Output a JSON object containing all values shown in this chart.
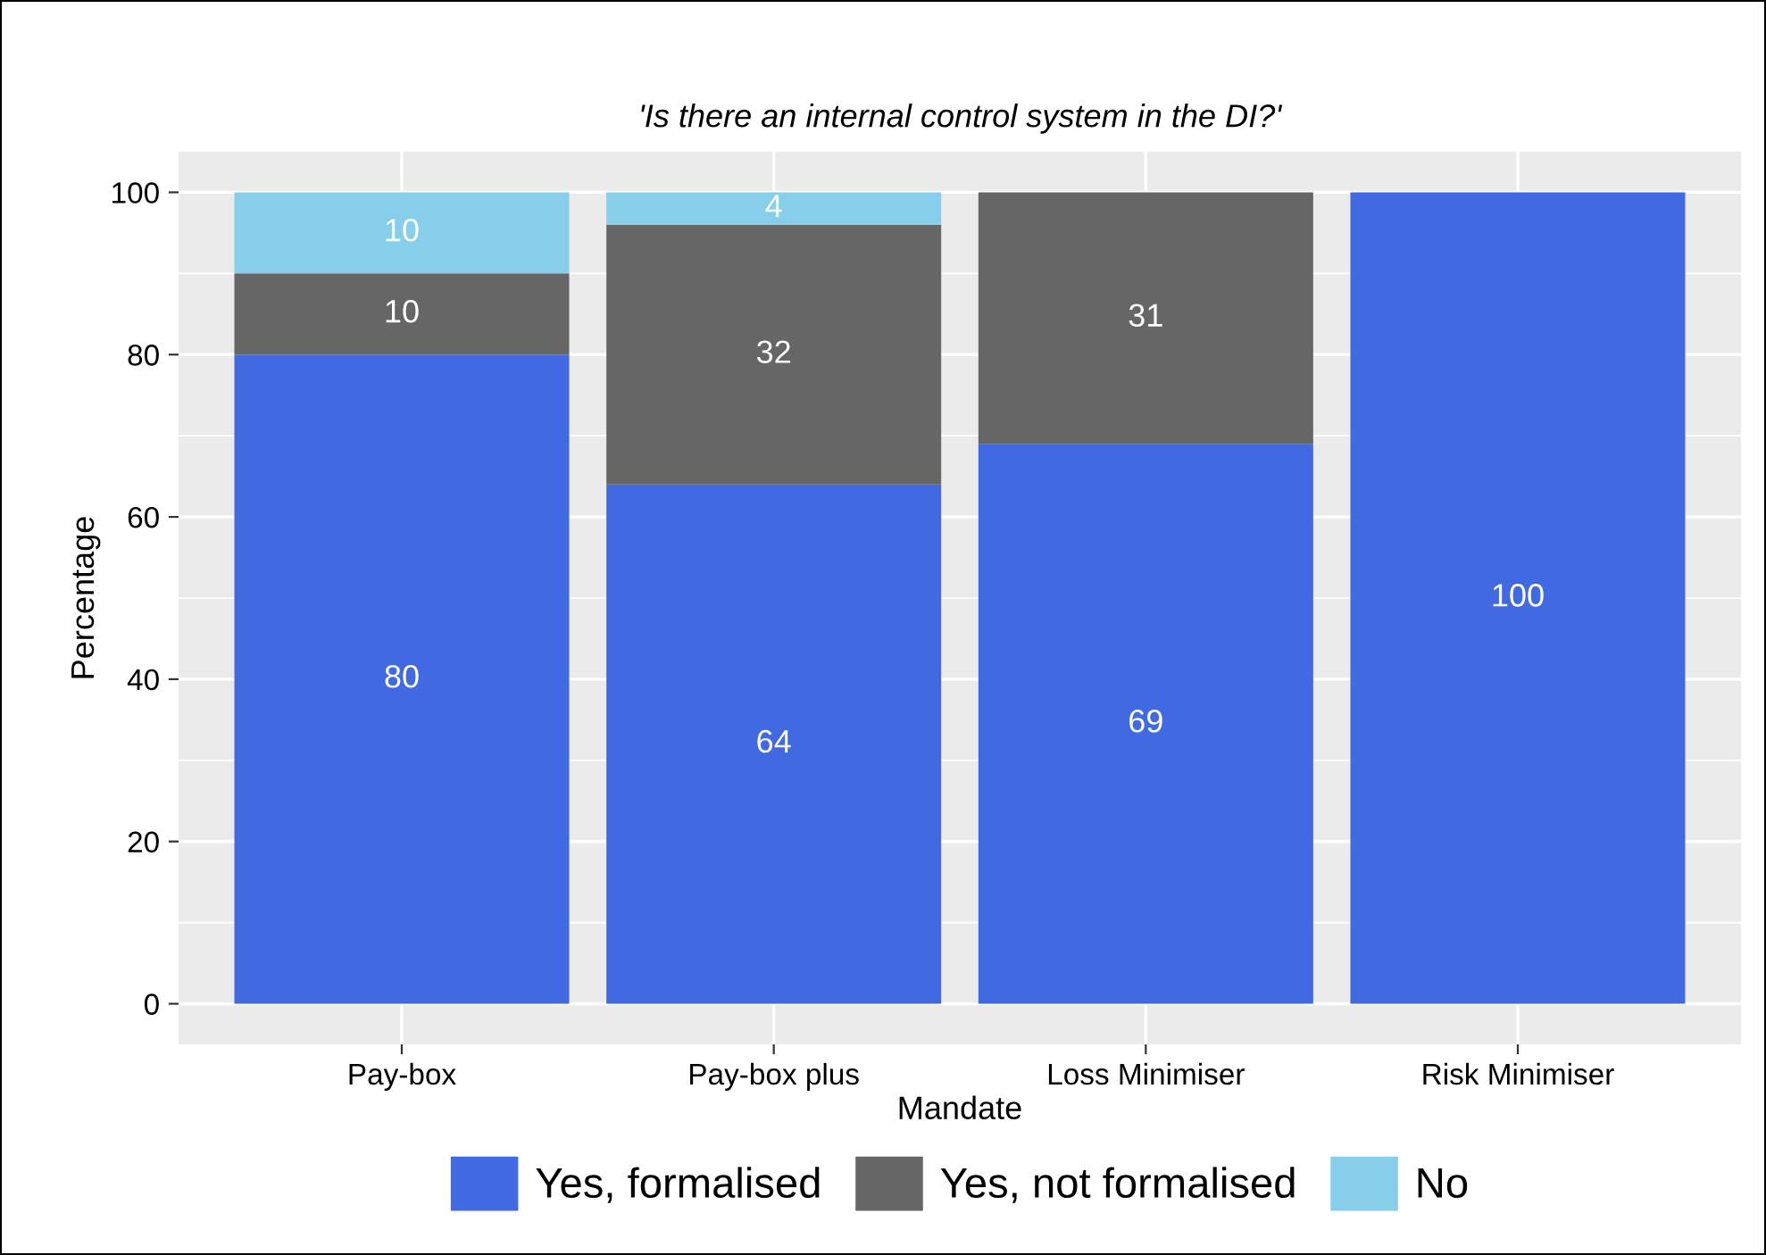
{
  "chart_data": {
    "type": "bar",
    "title": "'Is there an internal control system in the DI?'",
    "xlabel": "Mandate",
    "ylabel": "Percentage",
    "categories": [
      "Pay-box",
      "Pay-box plus",
      "Loss Minimiser",
      "Risk Minimiser"
    ],
    "stacked": true,
    "series": [
      {
        "name": "Yes, formalised",
        "color": "#4169e1",
        "values": [
          80,
          64,
          69,
          100
        ],
        "value_labels": [
          "80",
          "64",
          "69",
          "100"
        ]
      },
      {
        "name": "Yes, not formalised",
        "color": "#666666",
        "values": [
          10,
          32,
          31,
          0
        ],
        "value_labels": [
          "10",
          "32",
          "31",
          null
        ]
      },
      {
        "name": "No",
        "color": "#87ceeb",
        "values": [
          10,
          4,
          0,
          0
        ],
        "value_labels": [
          "10",
          "4",
          null,
          null
        ]
      }
    ],
    "ylim": [
      -5,
      105
    ],
    "yticks": [
      0,
      20,
      40,
      60,
      80,
      100
    ],
    "grid": true,
    "legend": "bottom"
  }
}
